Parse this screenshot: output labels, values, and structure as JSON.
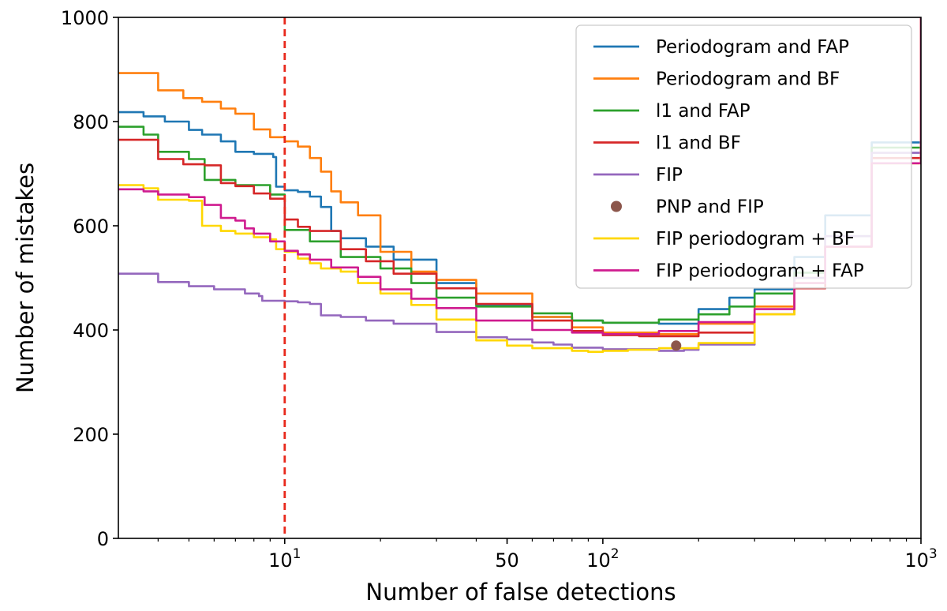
{
  "chart_data": {
    "type": "line",
    "title": "",
    "xlabel": "Number of false detections",
    "ylabel": "Number of mistakes",
    "xscale": "log",
    "xlim": [
      3,
      1000
    ],
    "ylim": [
      0,
      1000
    ],
    "y_ticks": [
      0,
      200,
      400,
      600,
      800,
      1000
    ],
    "x_ticks": [
      {
        "value": 10,
        "base": "10",
        "exp": "1"
      },
      {
        "value": 50,
        "base": "50",
        "exp": ""
      },
      {
        "value": 100,
        "base": "10",
        "exp": "2"
      },
      {
        "value": 1000,
        "base": "10",
        "exp": "3"
      }
    ],
    "reference_line": {
      "x": 10,
      "color": "#e8291c",
      "style": "dashed"
    },
    "legend_position": "top-right",
    "series": [
      {
        "name": "Periodogram and FAP",
        "color": "#1f77b4",
        "type": "step",
        "points": [
          [
            3,
            818
          ],
          [
            3.6,
            810
          ],
          [
            4.2,
            800
          ],
          [
            5,
            784
          ],
          [
            5.5,
            775
          ],
          [
            6.3,
            762
          ],
          [
            7,
            742
          ],
          [
            8,
            738
          ],
          [
            9.2,
            732
          ],
          [
            9.4,
            675
          ],
          [
            10,
            668
          ],
          [
            11,
            665
          ],
          [
            12,
            656
          ],
          [
            13,
            636
          ],
          [
            14,
            590
          ],
          [
            15,
            576
          ],
          [
            18,
            560
          ],
          [
            22,
            535
          ],
          [
            30,
            490
          ],
          [
            40,
            448
          ],
          [
            60,
            425
          ],
          [
            80,
            418
          ],
          [
            100,
            414
          ],
          [
            150,
            412
          ],
          [
            200,
            440
          ],
          [
            250,
            462
          ],
          [
            300,
            478
          ],
          [
            400,
            540
          ],
          [
            500,
            620
          ],
          [
            700,
            760
          ],
          [
            1000,
            1000
          ]
        ]
      },
      {
        "name": "Periodogram and BF",
        "color": "#ff7f0e",
        "type": "step",
        "points": [
          [
            3,
            893
          ],
          [
            3.5,
            893
          ],
          [
            4,
            860
          ],
          [
            4.8,
            845
          ],
          [
            5.5,
            838
          ],
          [
            6.3,
            825
          ],
          [
            7,
            815
          ],
          [
            8,
            785
          ],
          [
            9,
            770
          ],
          [
            10,
            762
          ],
          [
            11,
            752
          ],
          [
            12,
            730
          ],
          [
            13,
            704
          ],
          [
            14,
            666
          ],
          [
            15,
            645
          ],
          [
            17,
            620
          ],
          [
            20,
            550
          ],
          [
            25,
            512
          ],
          [
            30,
            496
          ],
          [
            40,
            470
          ],
          [
            60,
            425
          ],
          [
            80,
            405
          ],
          [
            100,
            395
          ],
          [
            150,
            392
          ],
          [
            200,
            412
          ],
          [
            300,
            445
          ],
          [
            400,
            500
          ],
          [
            500,
            560
          ],
          [
            700,
            720
          ],
          [
            1000,
            1000
          ]
        ]
      },
      {
        "name": "l1 and FAP",
        "color": "#2ca02c",
        "type": "step",
        "points": [
          [
            3,
            790
          ],
          [
            3.6,
            775
          ],
          [
            4,
            742
          ],
          [
            5,
            728
          ],
          [
            5.6,
            688
          ],
          [
            7,
            678
          ],
          [
            9,
            660
          ],
          [
            10,
            638
          ],
          [
            10,
            592
          ],
          [
            12,
            570
          ],
          [
            15,
            540
          ],
          [
            20,
            518
          ],
          [
            25,
            490
          ],
          [
            30,
            462
          ],
          [
            40,
            445
          ],
          [
            60,
            432
          ],
          [
            80,
            418
          ],
          [
            100,
            414
          ],
          [
            150,
            420
          ],
          [
            200,
            430
          ],
          [
            250,
            445
          ],
          [
            300,
            470
          ],
          [
            400,
            510
          ],
          [
            500,
            580
          ],
          [
            700,
            750
          ],
          [
            1000,
            1000
          ]
        ]
      },
      {
        "name": "l1 and BF",
        "color": "#d62728",
        "type": "step",
        "points": [
          [
            3,
            765
          ],
          [
            3.6,
            765
          ],
          [
            4,
            728
          ],
          [
            4.8,
            718
          ],
          [
            5.6,
            716
          ],
          [
            6.3,
            682
          ],
          [
            7,
            676
          ],
          [
            8,
            662
          ],
          [
            9,
            652
          ],
          [
            10,
            612
          ],
          [
            11,
            598
          ],
          [
            12,
            590
          ],
          [
            15,
            555
          ],
          [
            18,
            532
          ],
          [
            22,
            508
          ],
          [
            30,
            480
          ],
          [
            40,
            450
          ],
          [
            60,
            418
          ],
          [
            80,
            398
          ],
          [
            100,
            390
          ],
          [
            130,
            388
          ],
          [
            200,
            395
          ],
          [
            300,
            430
          ],
          [
            400,
            480
          ],
          [
            500,
            560
          ],
          [
            700,
            730
          ],
          [
            1000,
            1000
          ]
        ]
      },
      {
        "name": "FIP",
        "color": "#9467bd",
        "type": "step",
        "points": [
          [
            3,
            508
          ],
          [
            4,
            492
          ],
          [
            5,
            484
          ],
          [
            6,
            478
          ],
          [
            7.5,
            470
          ],
          [
            8.3,
            465
          ],
          [
            8.5,
            456
          ],
          [
            10,
            455
          ],
          [
            11,
            453
          ],
          [
            12,
            450
          ],
          [
            13,
            428
          ],
          [
            15,
            425
          ],
          [
            18,
            418
          ],
          [
            22,
            412
          ],
          [
            30,
            396
          ],
          [
            40,
            386
          ],
          [
            50,
            382
          ],
          [
            60,
            376
          ],
          [
            70,
            372
          ],
          [
            80,
            366
          ],
          [
            100,
            363
          ],
          [
            120,
            363
          ],
          [
            150,
            360
          ],
          [
            180,
            362
          ],
          [
            200,
            372
          ],
          [
            300,
            430
          ],
          [
            400,
            500
          ],
          [
            500,
            580
          ],
          [
            700,
            740
          ],
          [
            1000,
            1000
          ]
        ]
      },
      {
        "name": "FIP periodogram + BF",
        "color": "#ffd700",
        "type": "step",
        "points": [
          [
            3,
            678
          ],
          [
            3.6,
            672
          ],
          [
            4,
            650
          ],
          [
            5,
            648
          ],
          [
            5.5,
            600
          ],
          [
            6.3,
            590
          ],
          [
            7,
            585
          ],
          [
            8,
            578
          ],
          [
            9,
            574
          ],
          [
            9.4,
            555
          ],
          [
            10,
            550
          ],
          [
            11,
            537
          ],
          [
            12,
            528
          ],
          [
            13,
            518
          ],
          [
            15,
            512
          ],
          [
            17,
            490
          ],
          [
            20,
            470
          ],
          [
            25,
            448
          ],
          [
            30,
            420
          ],
          [
            40,
            380
          ],
          [
            50,
            370
          ],
          [
            60,
            365
          ],
          [
            80,
            360
          ],
          [
            90,
            358
          ],
          [
            100,
            360
          ],
          [
            120,
            362
          ],
          [
            150,
            365
          ],
          [
            200,
            375
          ],
          [
            300,
            430
          ],
          [
            400,
            490
          ],
          [
            500,
            560
          ],
          [
            700,
            720
          ],
          [
            1000,
            1000
          ]
        ]
      },
      {
        "name": "FIP periodogram + FAP",
        "color": "#cf1b8f",
        "type": "step",
        "points": [
          [
            3,
            670
          ],
          [
            3.6,
            666
          ],
          [
            4,
            660
          ],
          [
            5,
            655
          ],
          [
            5.6,
            640
          ],
          [
            6.3,
            615
          ],
          [
            7,
            610
          ],
          [
            7.5,
            595
          ],
          [
            8,
            585
          ],
          [
            9,
            570
          ],
          [
            10,
            552
          ],
          [
            11,
            545
          ],
          [
            12,
            535
          ],
          [
            14,
            520
          ],
          [
            17,
            502
          ],
          [
            20,
            478
          ],
          [
            25,
            460
          ],
          [
            30,
            442
          ],
          [
            40,
            418
          ],
          [
            60,
            400
          ],
          [
            80,
            395
          ],
          [
            100,
            392
          ],
          [
            150,
            398
          ],
          [
            200,
            415
          ],
          [
            300,
            440
          ],
          [
            400,
            490
          ],
          [
            500,
            560
          ],
          [
            700,
            720
          ],
          [
            1000,
            1000
          ]
        ]
      }
    ],
    "points_series": [
      {
        "name": "PNP and FIP",
        "color": "#8c564b",
        "x": 170,
        "y": 370
      }
    ]
  }
}
